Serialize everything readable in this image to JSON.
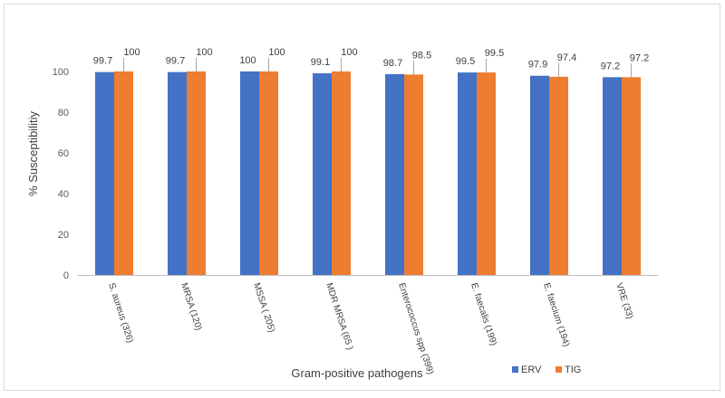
{
  "chart_data": {
    "type": "bar",
    "title": "",
    "xlabel": "Gram-positive pathogens",
    "ylabel": "% Susceptibilitiy",
    "ylim": [
      0,
      120
    ],
    "yticks": [
      0,
      20,
      40,
      60,
      80,
      100
    ],
    "grid": false,
    "legend_position": "bottom-right",
    "categories": [
      "S. aureus (326)",
      "MRSA (120)",
      "MSSA ( 205)",
      "MDR MRSA (65 )",
      "Enterococcus spp (399)",
      "E. faecalis (199)",
      "E. faecium (194)",
      "VRE (33)"
    ],
    "series": [
      {
        "name": "ERV",
        "color": "#4472c4",
        "values": [
          99.7,
          99.7,
          100,
          99.1,
          98.7,
          99.5,
          97.9,
          97.2
        ]
      },
      {
        "name": "TIG",
        "color": "#ed7d31",
        "values": [
          100,
          100,
          100,
          100,
          98.5,
          99.5,
          97.4,
          97.2
        ]
      }
    ]
  }
}
